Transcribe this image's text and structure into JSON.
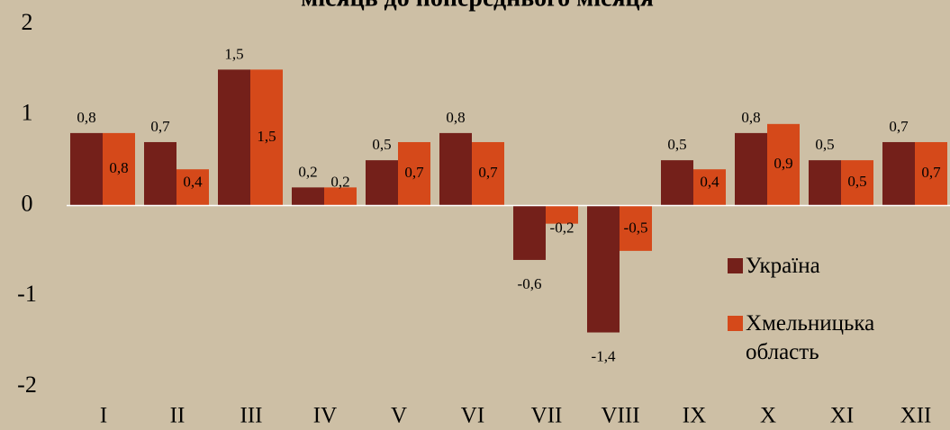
{
  "chart_data": {
    "type": "bar",
    "title": "місяць до попереднього місяця",
    "categories": [
      "I",
      "II",
      "III",
      "IV",
      "V",
      "VI",
      "VII",
      "VIII",
      "IX",
      "X",
      "XI",
      "XII"
    ],
    "series": [
      {
        "name": "Україна",
        "color": "#74201a",
        "values": [
          0.8,
          0.7,
          1.5,
          0.2,
          0.5,
          0.8,
          -0.6,
          -1.4,
          0.5,
          0.8,
          0.5,
          0.7
        ],
        "value_labels": [
          "0,8",
          "0,7",
          "1,5",
          "0,2",
          "0,5",
          "0,8",
          "-0,6",
          "-1,4",
          "0,5",
          "0,8",
          "0,5",
          "0,7"
        ]
      },
      {
        "name": "Хмельницька область",
        "color": "#d5491a",
        "values": [
          0.8,
          0.4,
          1.5,
          0.2,
          0.7,
          0.7,
          -0.2,
          -0.5,
          0.4,
          0.9,
          0.5,
          0.7
        ],
        "value_labels": [
          "0,8",
          "0,4",
          "1,5",
          "0,2",
          "0,7",
          "0,7",
          "-0,2",
          "-0,5",
          "0,4",
          "0,9",
          "0,5",
          "0,7"
        ]
      }
    ],
    "ylim": [
      -2,
      2
    ],
    "yticks": [
      -2,
      -1,
      0,
      1,
      2
    ],
    "legend": "right"
  }
}
